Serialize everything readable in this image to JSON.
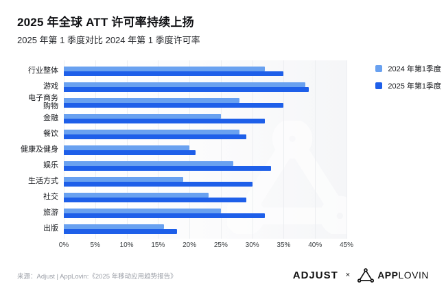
{
  "header": {
    "title": "2025 年全球 ATT 许可率持续上扬",
    "subtitle": "2025 年第 1 季度对比 2024 年第 1 季度许可率"
  },
  "chart_data": {
    "type": "bar",
    "orientation": "horizontal",
    "categories": [
      "行业整体",
      "游戏",
      "电子商务\n购物",
      "金融",
      "餐饮",
      "健康及健身",
      "娱乐",
      "生活方式",
      "社交",
      "旅游",
      "出版"
    ],
    "series": [
      {
        "name": "2024 年第1季度",
        "color": "#69a1f0",
        "values": [
          32,
          38.5,
          28,
          25,
          28,
          20,
          27,
          19,
          23,
          25,
          16
        ]
      },
      {
        "name": "2025 年第1季度",
        "color": "#1e5fe9",
        "values": [
          35,
          39,
          35,
          32,
          29,
          21,
          33,
          30,
          29,
          32,
          18
        ]
      }
    ],
    "unit": "%",
    "xlim": [
      0,
      45
    ],
    "x_ticks": [
      "0%",
      "5%",
      "10%",
      "15%",
      "20%",
      "25%",
      "30%",
      "35%",
      "40%",
      "45%"
    ],
    "grid": true,
    "legend_position": "top-right"
  },
  "footer": {
    "source": "来源：Adjust | AppLovin:《2025 年移动应用趋势报告》",
    "adjust_logo": "ADJUST",
    "multiply": "×",
    "applovin_logo_bold": "APP",
    "applovin_logo_light": "LOVIN"
  }
}
